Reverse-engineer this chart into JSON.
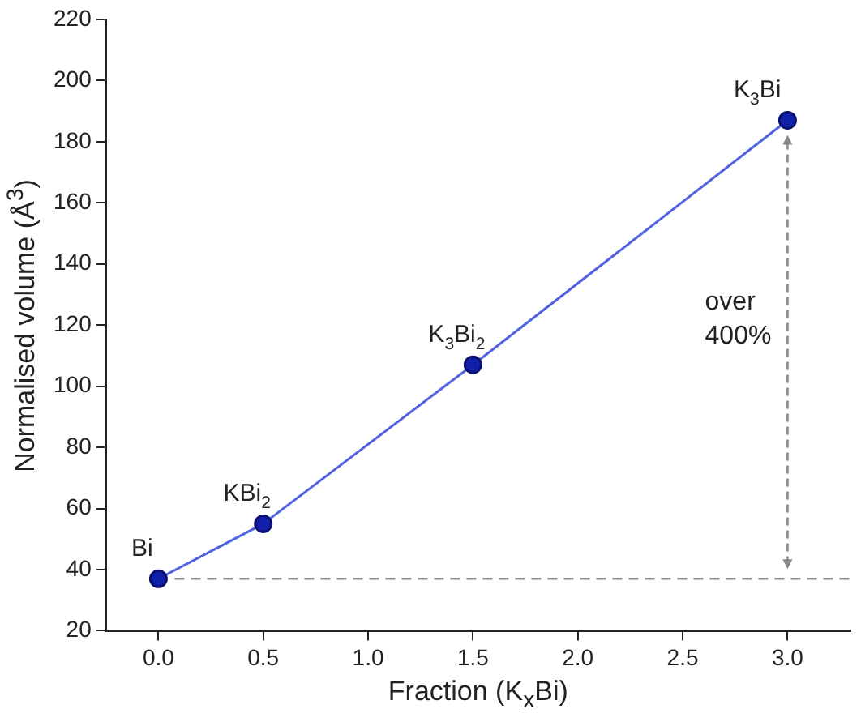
{
  "chart_data": {
    "type": "line",
    "xlabel": "Fraction (K$_{x}$Bi)",
    "ylabel": "Normalised volume (Å$^{3}$)",
    "x": [
      0,
      0.5,
      1.5,
      3.0
    ],
    "series": [
      {
        "color": "#4f63e0",
        "values": [
          37,
          55,
          107,
          187
        ]
      }
    ],
    "xlim": [
      -0.25,
      3.3
    ],
    "xticks": [
      {
        "value": 0,
        "label": "0.0"
      },
      {
        "value": 0.5,
        "label": "0.5"
      },
      {
        "value": 1,
        "label": "1.0"
      },
      {
        "value": 1.5,
        "label": "1.5"
      },
      {
        "value": 2,
        "label": "2.0"
      },
      {
        "value": 2.5,
        "label": "2.5"
      },
      {
        "value": 3,
        "label": "3.0"
      }
    ],
    "ylim": [
      20,
      220
    ],
    "yticks": [
      20,
      40,
      60,
      80,
      100,
      120,
      140,
      160,
      180,
      200,
      220
    ],
    "grid": false,
    "legend": false,
    "marker": "circle",
    "line_style": "solid",
    "ref_lines": [
      {
        "axis": "y",
        "value": 37,
        "color": "#888888",
        "line_style": "dashed"
      }
    ],
    "annotations": [
      {
        "text": "Bi",
        "x": 0,
        "y": 37
      },
      {
        "text": "KBi$_{2}$",
        "x": 0.5,
        "y": 55
      },
      {
        "text": "K$_{3}$Bi$_{2}$",
        "x": 1.5,
        "y": 107
      },
      {
        "text": "K$_{3}$Bi",
        "x": 3.0,
        "y": 187
      },
      "over\n400%"
    ]
  }
}
